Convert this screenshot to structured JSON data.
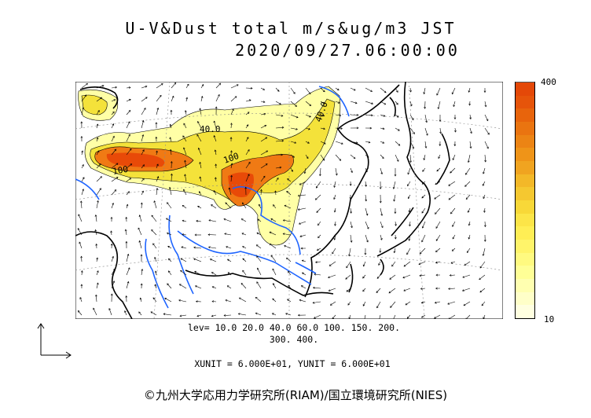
{
  "header": {
    "title_line1": "U-V&Dust total m/s&ug/m3 JST",
    "title_line2": "2020/09/27.06:00:00"
  },
  "map": {
    "region": "East Asia",
    "contour_labels": [
      "40.0",
      "40.0",
      "100",
      "100"
    ],
    "colors": {
      "coast": "#000000",
      "rivers": "#1e64ff",
      "vectors": "#000000",
      "low_dust": "#ffffa6",
      "mid_dust": "#f4e23a",
      "high_dust": "#f07a14",
      "peak_dust": "#e84a08"
    }
  },
  "colorbar": {
    "max_label": "400",
    "min_label": "10",
    "bands": [
      "#ffffe0",
      "#ffffc8",
      "#ffffb0",
      "#ffff96",
      "#fffa80",
      "#fff46a",
      "#ffee55",
      "#fce548",
      "#f8d838",
      "#f5c830",
      "#f3b828",
      "#f0a420",
      "#ef9418",
      "#ec8414",
      "#ea7410",
      "#e8640c",
      "#e6540a",
      "#e44808"
    ]
  },
  "footer": {
    "lev_line1": "lev= 10.0 20.0 40.0 60.0 100. 150. 200.",
    "lev_line2": "300. 400.",
    "unit_line": "XUNIT = 6.000E+01, YUNIT = 6.000E+01",
    "credit": "©九州大学応用力学研究所(RIAM)/国立環境研究所(NIES)"
  }
}
